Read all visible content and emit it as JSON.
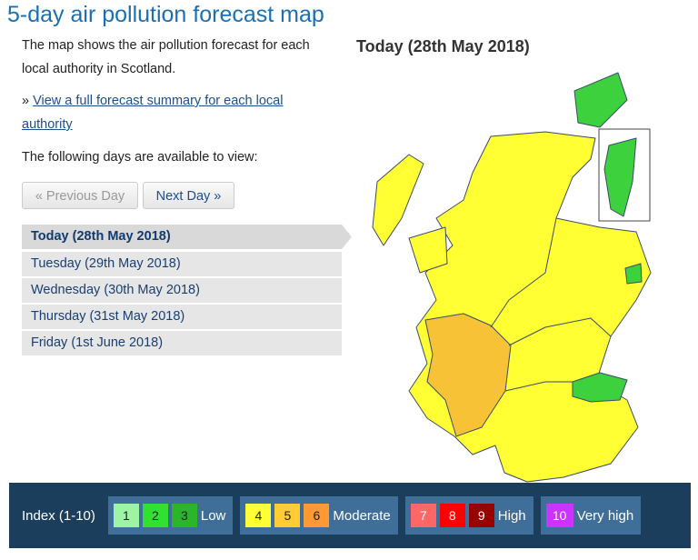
{
  "header": {
    "title": "5-day air pollution forecast map"
  },
  "intro": "The map shows the air pollution forecast for each local authority in Scotland.",
  "summary": {
    "prefix": "»",
    "link": "View a full forecast summary for each local authority"
  },
  "days_intro": "The following days are available to view:",
  "buttons": [
    "« Previous Day",
    "Next Day »"
  ],
  "days": [
    "Today (28th May 2018)",
    "Tuesday (29th May 2018)",
    "Wednesday (30th May 2018)",
    "Thursday (31st May 2018)",
    "Friday (1st June 2018)"
  ],
  "map_title": "Today (28th May 2018)",
  "legend": {
    "label": "Index (1-10)",
    "groups": [
      {
        "indices": [
          1,
          2,
          3
        ],
        "label": "Low"
      },
      {
        "indices": [
          4,
          5,
          6
        ],
        "label": "Moderate"
      },
      {
        "indices": [
          7,
          8,
          9
        ],
        "label": "High"
      },
      {
        "indices": [
          10
        ],
        "label": "Very high"
      }
    ]
  }
}
